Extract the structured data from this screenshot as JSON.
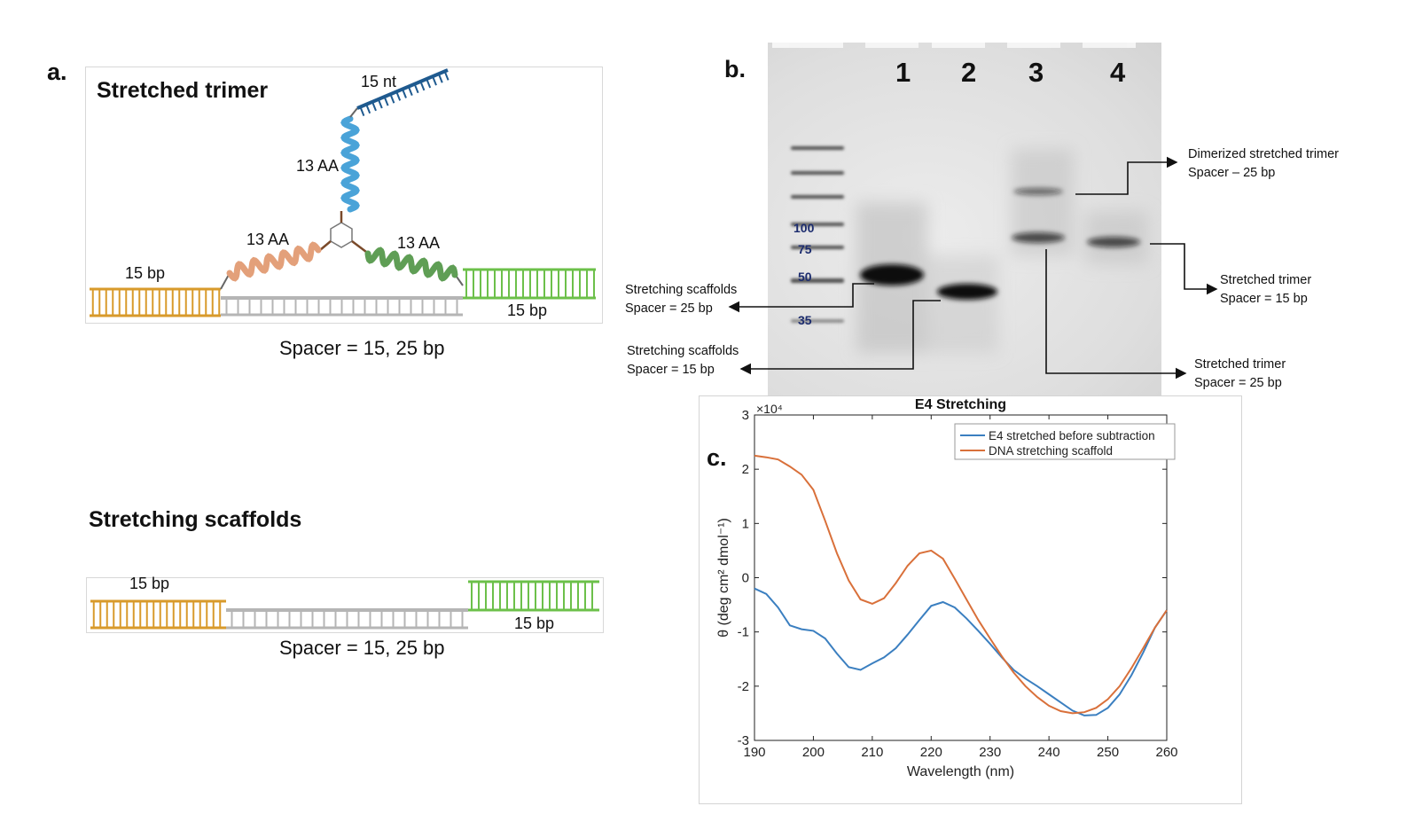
{
  "panel_a": {
    "letter": "a.",
    "title": "Stretched trimer",
    "labels": {
      "top_strand": "15 nt",
      "arm_top": "13 AA",
      "arm_left": "13 AA",
      "arm_right": "13 AA",
      "left_duplex": "15 bp",
      "right_duplex": "15 bp",
      "spacer": "Spacer = 15, 25 bp"
    },
    "scaffold": {
      "title": "Stretching scaffolds",
      "left_duplex": "15 bp",
      "right_duplex": "15 bp",
      "spacer": "Spacer = 15, 25 bp"
    },
    "colors": {
      "orange_dna": "#d89a2b",
      "green_dna": "#6cc04a",
      "grey_dna": "#b5b5b5",
      "blue_helix": "#4aa3d8",
      "salmon_helix": "#e3a07a",
      "green_helix": "#5f9e55",
      "navy_strand": "#1f5a8f"
    }
  },
  "panel_b": {
    "letter": "b.",
    "lanes": [
      "1",
      "2",
      "3",
      "4"
    ],
    "ladder": [
      "100",
      "75",
      "50",
      "35"
    ],
    "annotations": {
      "dimer_line1": "Dimerized stretched trimer",
      "dimer_line2": "Spacer – 25 bp",
      "trimer15_line1": "Stretched trimer",
      "trimer15_line2": "Spacer = 15 bp",
      "trimer25_line1": "Stretched trimer",
      "trimer25_line2": "Spacer = 25 bp",
      "scaf25_line1": "Stretching scaffolds",
      "scaf25_line2": "Spacer = 25 bp",
      "scaf15_line1": "Stretching scaffolds",
      "scaf15_line2": "Spacer = 15 bp"
    }
  },
  "panel_c": {
    "letter": "c."
  },
  "chart_data": {
    "type": "line",
    "title": "E4 Stretching",
    "xlabel": "Wavelength (nm)",
    "ylabel": "θ (deg cm² dmol⁻¹)",
    "exponent_label": "×10⁴",
    "xlim": [
      190,
      260
    ],
    "ylim": [
      -3,
      3
    ],
    "xticks": [
      190,
      200,
      210,
      220,
      230,
      240,
      250,
      260
    ],
    "yticks": [
      -3,
      -2,
      -1,
      0,
      1,
      2,
      3
    ],
    "legend_position": "top-right",
    "grid": false,
    "x": [
      190,
      192,
      194,
      196,
      198,
      200,
      202,
      204,
      206,
      208,
      210,
      212,
      214,
      216,
      218,
      220,
      222,
      224,
      226,
      228,
      230,
      232,
      234,
      236,
      238,
      240,
      242,
      244,
      246,
      248,
      250,
      252,
      254,
      256,
      258,
      260
    ],
    "series": [
      {
        "name": "E4 stretched before subtraction",
        "color": "#3b7fc0",
        "values": [
          -0.2,
          -0.3,
          -0.55,
          -0.88,
          -0.95,
          -0.98,
          -1.12,
          -1.4,
          -1.65,
          -1.7,
          -1.58,
          -1.47,
          -1.3,
          -1.05,
          -0.78,
          -0.52,
          -0.45,
          -0.55,
          -0.75,
          -0.98,
          -1.22,
          -1.47,
          -1.7,
          -1.86,
          -2.0,
          -2.15,
          -2.3,
          -2.45,
          -2.54,
          -2.53,
          -2.4,
          -2.15,
          -1.8,
          -1.38,
          -0.92,
          -0.6
        ]
      },
      {
        "name": "DNA stretching scaffold",
        "color": "#d9703a",
        "values": [
          2.25,
          2.22,
          2.18,
          2.05,
          1.9,
          1.62,
          1.05,
          0.45,
          -0.05,
          -0.4,
          -0.48,
          -0.38,
          -0.1,
          0.22,
          0.45,
          0.5,
          0.35,
          -0.02,
          -0.4,
          -0.78,
          -1.12,
          -1.45,
          -1.75,
          -2.0,
          -2.2,
          -2.36,
          -2.46,
          -2.5,
          -2.48,
          -2.4,
          -2.24,
          -2.0,
          -1.67,
          -1.3,
          -0.92,
          -0.6
        ]
      }
    ]
  }
}
